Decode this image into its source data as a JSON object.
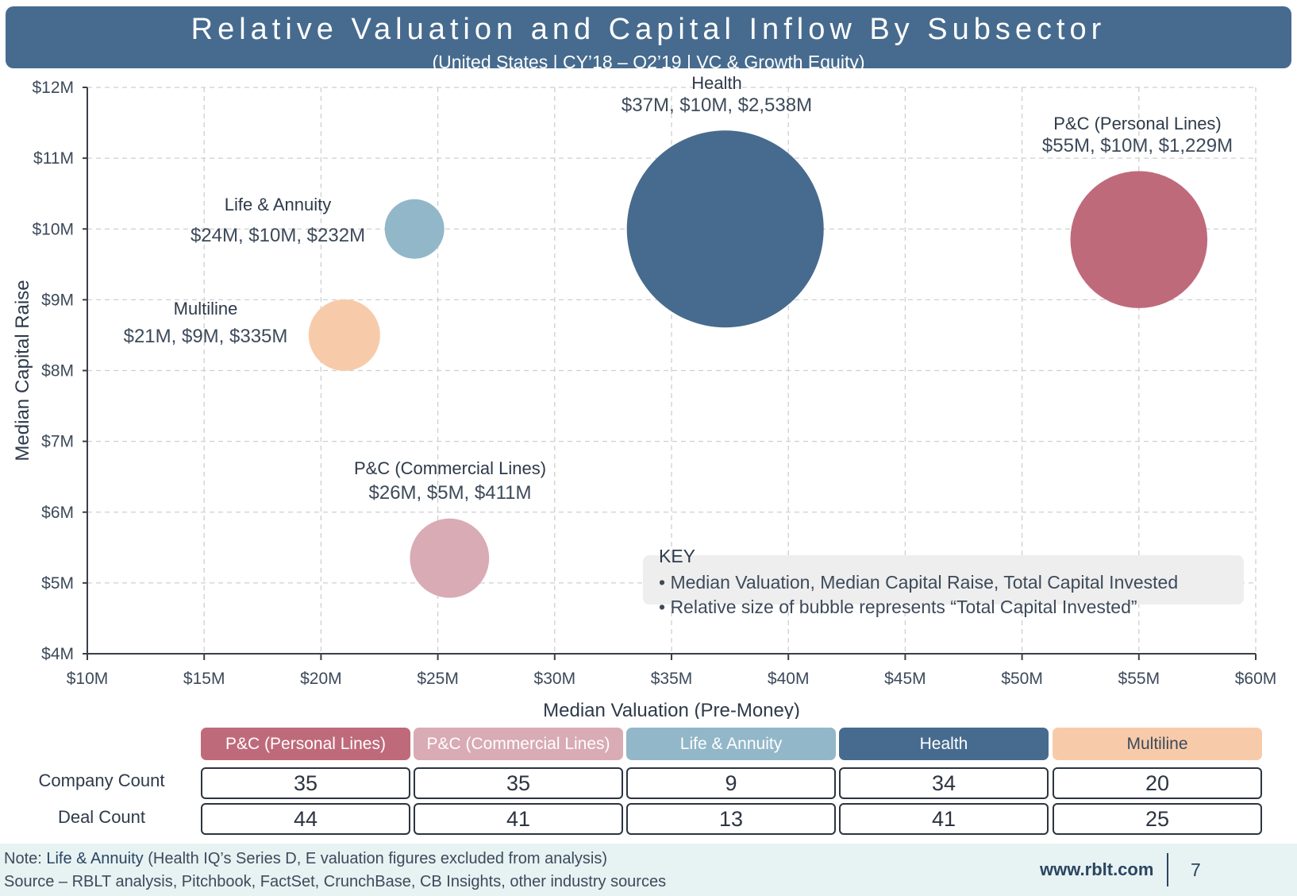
{
  "header": {
    "title": "Relative Valuation and Capital Inflow By Subsector",
    "subtitle": "(United States | CY’18 – Q2’19 | VC & Growth Equity)"
  },
  "chart_data": {
    "type": "scatter",
    "title": "Relative Valuation and Capital Inflow By Subsector",
    "subtitle": "(United States | CY’18 – Q2’19 | VC & Growth Equity)",
    "xlabel": "Median Valuation (Pre-Money)",
    "ylabel": "Median Capital Raise",
    "xlim": [
      10,
      60
    ],
    "ylim": [
      4,
      12
    ],
    "x_ticks": [
      10,
      15,
      20,
      25,
      30,
      35,
      40,
      45,
      50,
      55,
      60
    ],
    "y_ticks": [
      4,
      5,
      6,
      7,
      8,
      9,
      10,
      11,
      12
    ],
    "x_tick_labels": [
      "$10M",
      "$15M",
      "$20M",
      "$25M",
      "$30M",
      "$35M",
      "$40M",
      "$45M",
      "$50M",
      "$55M",
      "$60M"
    ],
    "y_tick_labels": [
      "$4M",
      "$5M",
      "$6M",
      "$7M",
      "$8M",
      "$9M",
      "$10M",
      "$11M",
      "$12M"
    ],
    "grid": true,
    "bubble_size_represents": "Total Capital Invested",
    "points": [
      {
        "name": "Health",
        "label": "$37M, $10M, $2,538M",
        "x": 37.3,
        "y": 10.0,
        "size": 2538,
        "color": "#466b8e"
      },
      {
        "name": "P&C (Personal Lines)",
        "label": "$55M, $10M, $1,229M",
        "x": 55.0,
        "y": 9.85,
        "size": 1229,
        "color": "#bf6a7a"
      },
      {
        "name": "Life & Annuity",
        "label": "$24M, $10M, $232M",
        "x": 24.0,
        "y": 10.0,
        "size": 232,
        "color": "#92b7c8"
      },
      {
        "name": "Multiline",
        "label": "$21M, $9M, $335M",
        "x": 21.0,
        "y": 8.5,
        "size": 335,
        "color": "#f7cbaa"
      },
      {
        "name": "P&C (Commercial Lines)",
        "label": "$26M, $5M, $411M",
        "x": 25.5,
        "y": 5.35,
        "size": 411,
        "color": "#d9abb4"
      }
    ],
    "key": {
      "title": "KEY",
      "items": [
        "Median Valuation, Median Capital Raise, Total Capital Invested",
        "Relative size of bubble represents “Total Capital Invested”"
      ]
    }
  },
  "table": {
    "columns": [
      {
        "name": "P&C (Personal Lines)",
        "color": "#bf6a7a",
        "text_color": "#ffffff"
      },
      {
        "name": "P&C (Commercial Lines)",
        "color": "#d9abb4",
        "text_color": "#ffffff"
      },
      {
        "name": "Life & Annuity",
        "color": "#92b7c8",
        "text_color": "#ffffff"
      },
      {
        "name": "Health",
        "color": "#466b8e",
        "text_color": "#ffffff"
      },
      {
        "name": "Multiline",
        "color": "#f7cbaa",
        "text_color": "#3d4a5a"
      }
    ],
    "rows": [
      {
        "label": "Company Count",
        "values": [
          "35",
          "35",
          "9",
          "34",
          "20"
        ]
      },
      {
        "label": "Deal Count",
        "values": [
          "44",
          "41",
          "13",
          "41",
          "25"
        ]
      }
    ]
  },
  "footer": {
    "note_prefix": "Note: ",
    "note_bold": "Life & Annuity",
    "note_rest": " (Health IQ’s Series D, E valuation figures excluded from analysis)",
    "source": "Source – RBLT analysis, Pitchbook, FactSet, CrunchBase, CB Insights, other industry sources",
    "url": "www.rblt.com",
    "page": "7"
  }
}
